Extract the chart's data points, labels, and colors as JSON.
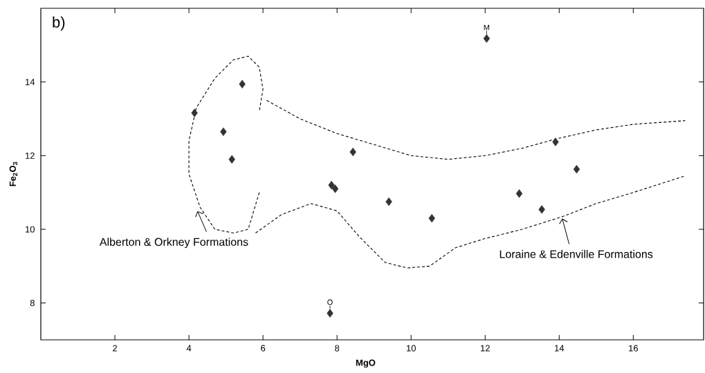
{
  "chart_data": {
    "type": "scatter",
    "xlabel": "MgO",
    "ylabel": "Fe$_{2}$O$_{3}$",
    "xlim": [
      0,
      17.9
    ],
    "ylim": [
      7,
      16
    ],
    "xticks": [
      2,
      4,
      6,
      8,
      10,
      12,
      14,
      16
    ],
    "yticks": [
      8,
      10,
      12,
      14
    ],
    "series": [
      {
        "color": "#333333",
        "marker": "diamond",
        "x": [
          4.15,
          5.44,
          4.93,
          5.16,
          7.85,
          7.95,
          8.43,
          9.4,
          10.56,
          12.04,
          12.92,
          13.53,
          13.9,
          14.47,
          7.81
        ],
        "values": [
          13.16,
          13.94,
          12.65,
          11.9,
          11.2,
          11.1,
          12.1,
          10.75,
          10.3,
          15.18,
          10.97,
          10.54,
          12.37,
          11.63,
          7.72
        ]
      },
      {
        "type": "line",
        "color": "#000000",
        "line_style": "dashed",
        "marker": "none",
        "x": [
          5.9,
          5.75,
          5.6,
          5.2,
          4.7,
          4.3,
          4.0,
          4.0,
          4.2,
          4.7,
          5.2,
          5.6,
          5.9,
          6.0,
          5.9
        ],
        "values": [
          11.0,
          10.5,
          10.0,
          9.9,
          10.0,
          10.6,
          11.5,
          12.4,
          13.3,
          14.1,
          14.6,
          14.7,
          14.4,
          13.8,
          13.2
        ]
      },
      {
        "type": "line",
        "color": "#000000",
        "line_style": "dashed",
        "marker": "none",
        "x": [
          6.1,
          7,
          8,
          9,
          10,
          11,
          12,
          13,
          13.9,
          15,
          16,
          17.4
        ],
        "values": [
          13.5,
          13.0,
          12.6,
          12.3,
          12.0,
          11.9,
          12.0,
          12.2,
          12.45,
          12.7,
          12.85,
          12.95
        ]
      },
      {
        "type": "line",
        "color": "#000000",
        "line_style": "dashed",
        "marker": "none",
        "x": [
          5.8,
          6.5,
          7.3,
          8,
          8.6,
          9.3,
          9.9,
          10.5,
          11.2,
          12,
          13,
          14.1,
          15,
          16,
          17.4
        ],
        "values": [
          9.9,
          10.4,
          10.7,
          10.5,
          9.8,
          9.1,
          8.95,
          9.0,
          9.5,
          9.75,
          10.0,
          10.35,
          10.7,
          11.0,
          11.45
        ]
      }
    ],
    "annotations": [
      "b)",
      {
        "text": "Alberton & Orkney Formations",
        "x": 4.25,
        "y": 10.55
      },
      {
        "text": "Loraine & Edenville Formations",
        "x": 14.1,
        "y": 10.35
      },
      {
        "text": "M",
        "x": 12.04,
        "y": 15.18
      },
      {
        "text": "O",
        "x": 7.81,
        "y": 7.72
      }
    ]
  }
}
